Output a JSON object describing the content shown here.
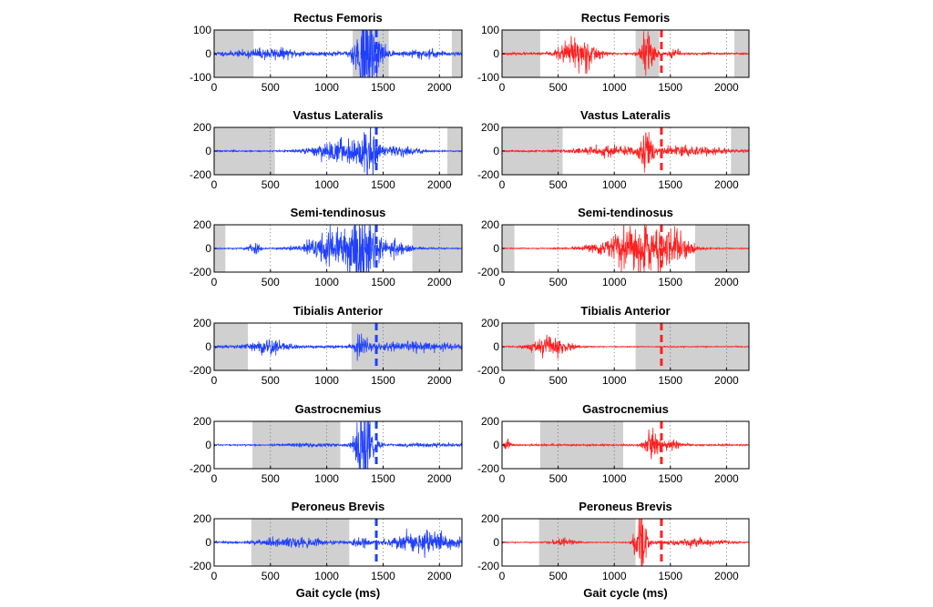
{
  "chart_data": [
    {
      "type": "line",
      "column": "left",
      "title": "Rectus Femoris",
      "xlabel": "",
      "ylabel": "",
      "xlim": [
        0,
        2200
      ],
      "ylim": [
        -100,
        100
      ],
      "xticks": [
        0,
        500,
        1000,
        1500,
        2000
      ],
      "yticks": [
        100,
        0,
        -100
      ],
      "line_color": "#1f3fff",
      "heel_strike_ms": 1440,
      "shaded_ranges": [
        [
          0,
          350
        ],
        [
          1230,
          1550
        ],
        [
          2110,
          2200
        ]
      ],
      "signal": {
        "base": 6,
        "seed": 11,
        "bursts": [
          {
            "center": 500,
            "width": 250,
            "amp": 12
          },
          {
            "center": 1350,
            "width": 90,
            "amp": 140
          },
          {
            "center": 1480,
            "width": 60,
            "amp": 18
          },
          {
            "center": 1850,
            "width": 150,
            "amp": 10
          }
        ]
      }
    },
    {
      "type": "line",
      "column": "right",
      "title": "Rectus Femoris",
      "xlabel": "",
      "ylabel": "",
      "xlim": [
        0,
        2200
      ],
      "ylim": [
        -100,
        100
      ],
      "xticks": [
        0,
        500,
        1000,
        1500,
        2000
      ],
      "yticks": [
        100,
        0,
        -100
      ],
      "line_color": "#ff2020",
      "heel_strike_ms": 1420,
      "shaded_ranges": [
        [
          0,
          340
        ],
        [
          1190,
          1400
        ],
        [
          2070,
          2200
        ]
      ],
      "signal": {
        "base": 3,
        "seed": 23,
        "bursts": [
          {
            "center": 680,
            "width": 150,
            "amp": 55
          },
          {
            "center": 1300,
            "width": 60,
            "amp": 80
          },
          {
            "center": 1540,
            "width": 50,
            "amp": 14
          }
        ]
      }
    },
    {
      "type": "line",
      "column": "left",
      "title": "Vastus Lateralis",
      "xlabel": "",
      "ylabel": "",
      "xlim": [
        0,
        2200
      ],
      "ylim": [
        -200,
        200
      ],
      "xticks": [
        0,
        500,
        1000,
        1500,
        2000
      ],
      "yticks": [
        200,
        0,
        -200
      ],
      "line_color": "#1f3fff",
      "heel_strike_ms": 1440,
      "shaded_ranges": [
        [
          0,
          540
        ],
        [
          2070,
          2200
        ]
      ],
      "signal": {
        "base": 4,
        "seed": 37,
        "bursts": [
          {
            "center": 1150,
            "width": 260,
            "amp": 70
          },
          {
            "center": 1380,
            "width": 60,
            "amp": 190
          },
          {
            "center": 1650,
            "width": 200,
            "amp": 22
          }
        ]
      }
    },
    {
      "type": "line",
      "column": "right",
      "title": "Vastus Lateralis",
      "xlabel": "",
      "ylabel": "",
      "xlim": [
        0,
        2200
      ],
      "ylim": [
        -200,
        200
      ],
      "xticks": [
        0,
        500,
        1000,
        1500,
        2000
      ],
      "yticks": [
        200,
        0,
        -200
      ],
      "line_color": "#ff2020",
      "heel_strike_ms": 1420,
      "shaded_ranges": [
        [
          0,
          540
        ],
        [
          2040,
          2200
        ]
      ],
      "signal": {
        "base": 5,
        "seed": 41,
        "bursts": [
          {
            "center": 950,
            "width": 300,
            "amp": 28
          },
          {
            "center": 1290,
            "width": 50,
            "amp": 150
          },
          {
            "center": 1650,
            "width": 350,
            "amp": 30
          }
        ]
      }
    },
    {
      "type": "line",
      "column": "left",
      "title": "Semi-tendinosus",
      "xlabel": "",
      "ylabel": "",
      "xlim": [
        0,
        2200
      ],
      "ylim": [
        -200,
        200
      ],
      "xticks": [
        0,
        500,
        1000,
        1500,
        2000
      ],
      "yticks": [
        200,
        0,
        -200
      ],
      "line_color": "#1f3fff",
      "heel_strike_ms": 1440,
      "shaded_ranges": [
        [
          0,
          100
        ],
        [
          1760,
          2200
        ]
      ],
      "signal": {
        "base": 4,
        "seed": 53,
        "bursts": [
          {
            "center": 350,
            "width": 50,
            "amp": 40
          },
          {
            "center": 1100,
            "width": 260,
            "amp": 120
          },
          {
            "center": 1330,
            "width": 90,
            "amp": 230
          },
          {
            "center": 1600,
            "width": 150,
            "amp": 50
          }
        ]
      }
    },
    {
      "type": "line",
      "column": "right",
      "title": "Semi-tendinosus",
      "xlabel": "",
      "ylabel": "",
      "xlim": [
        0,
        2200
      ],
      "ylim": [
        -200,
        200
      ],
      "xticks": [
        0,
        500,
        1000,
        1500,
        2000
      ],
      "yticks": [
        200,
        0,
        -200
      ],
      "line_color": "#ff2020",
      "heel_strike_ms": 1420,
      "shaded_ranges": [
        [
          0,
          110
        ],
        [
          1720,
          2200
        ]
      ],
      "signal": {
        "base": 3,
        "seed": 67,
        "bursts": [
          {
            "center": 1200,
            "width": 300,
            "amp": 130
          },
          {
            "center": 1550,
            "width": 150,
            "amp": 60
          }
        ]
      }
    },
    {
      "type": "line",
      "column": "left",
      "title": "Tibialis Anterior",
      "xlabel": "",
      "ylabel": "",
      "xlim": [
        0,
        2200
      ],
      "ylim": [
        -200,
        200
      ],
      "xticks": [
        0,
        500,
        1000,
        1500,
        2000
      ],
      "yticks": [
        200,
        0,
        -200
      ],
      "line_color": "#1f3fff",
      "heel_strike_ms": 1440,
      "shaded_ranges": [
        [
          0,
          300
        ],
        [
          1220,
          2200
        ]
      ],
      "signal": {
        "base": 8,
        "seed": 71,
        "bursts": [
          {
            "center": 480,
            "width": 180,
            "amp": 45
          },
          {
            "center": 1300,
            "width": 60,
            "amp": 70
          },
          {
            "center": 1800,
            "width": 400,
            "amp": 22
          }
        ]
      }
    },
    {
      "type": "line",
      "column": "right",
      "title": "Tibialis Anterior",
      "xlabel": "",
      "ylabel": "",
      "xlim": [
        0,
        2200
      ],
      "ylim": [
        -200,
        200
      ],
      "xticks": [
        0,
        500,
        1000,
        1500,
        2000
      ],
      "yticks": [
        200,
        0,
        -200
      ],
      "line_color": "#ff2020",
      "heel_strike_ms": 1420,
      "shaded_ranges": [
        [
          0,
          290
        ],
        [
          1190,
          2200
        ]
      ],
      "signal": {
        "base": 3,
        "seed": 83,
        "bursts": [
          {
            "center": 430,
            "width": 170,
            "amp": 60
          }
        ]
      }
    },
    {
      "type": "line",
      "column": "left",
      "title": "Gastrocnemius",
      "xlabel": "",
      "ylabel": "",
      "xlim": [
        0,
        2200
      ],
      "ylim": [
        -200,
        200
      ],
      "xticks": [
        0,
        500,
        1000,
        1500,
        2000
      ],
      "yticks": [
        200,
        0,
        -200
      ],
      "line_color": "#1f3fff",
      "heel_strike_ms": 1440,
      "shaded_ranges": [
        [
          340,
          1120
        ]
      ],
      "signal": {
        "base": 4,
        "seed": 97,
        "bursts": [
          {
            "center": 900,
            "width": 250,
            "amp": 10
          },
          {
            "center": 1340,
            "width": 80,
            "amp": 260
          },
          {
            "center": 1900,
            "width": 300,
            "amp": 10
          }
        ]
      }
    },
    {
      "type": "line",
      "column": "right",
      "title": "Gastrocnemius",
      "xlabel": "",
      "ylabel": "",
      "xlim": [
        0,
        2200
      ],
      "ylim": [
        -200,
        200
      ],
      "xticks": [
        0,
        500,
        1000,
        1500,
        2000
      ],
      "yticks": [
        200,
        0,
        -200
      ],
      "line_color": "#ff2020",
      "heel_strike_ms": 1420,
      "shaded_ranges": [
        [
          340,
          1080
        ]
      ],
      "signal": {
        "base": 5,
        "seed": 101,
        "bursts": [
          {
            "center": 50,
            "width": 30,
            "amp": 30
          },
          {
            "center": 1330,
            "width": 60,
            "amp": 90
          },
          {
            "center": 1500,
            "width": 100,
            "amp": 30
          }
        ]
      }
    },
    {
      "type": "line",
      "column": "left",
      "title": "Peroneus Brevis",
      "xlabel": "Gait cycle (ms)",
      "ylabel": "",
      "xlim": [
        0,
        2200
      ],
      "ylim": [
        -200,
        200
      ],
      "xticks": [
        0,
        500,
        1000,
        1500,
        2000
      ],
      "yticks": [
        200,
        0,
        -200
      ],
      "line_color": "#1f3fff",
      "heel_strike_ms": 1440,
      "shaded_ranges": [
        [
          330,
          1200
        ]
      ],
      "signal": {
        "base": 5,
        "seed": 113,
        "bursts": [
          {
            "center": 700,
            "width": 300,
            "amp": 30
          },
          {
            "center": 1300,
            "width": 60,
            "amp": 40
          },
          {
            "center": 1850,
            "width": 300,
            "amp": 60
          }
        ]
      }
    },
    {
      "type": "line",
      "column": "right",
      "title": "Peroneus Brevis",
      "xlabel": "Gait cycle (ms)",
      "ylabel": "",
      "xlim": [
        0,
        2200
      ],
      "ylim": [
        -200,
        200
      ],
      "xticks": [
        0,
        500,
        1000,
        1500,
        2000
      ],
      "yticks": [
        200,
        0,
        -200
      ],
      "line_color": "#ff2020",
      "heel_strike_ms": 1420,
      "shaded_ranges": [
        [
          330,
          1190
        ]
      ],
      "signal": {
        "base": 3,
        "seed": 127,
        "bursts": [
          {
            "center": 550,
            "width": 100,
            "amp": 25
          },
          {
            "center": 1240,
            "width": 50,
            "amp": 230
          },
          {
            "center": 1700,
            "width": 300,
            "amp": 20
          }
        ]
      }
    }
  ]
}
